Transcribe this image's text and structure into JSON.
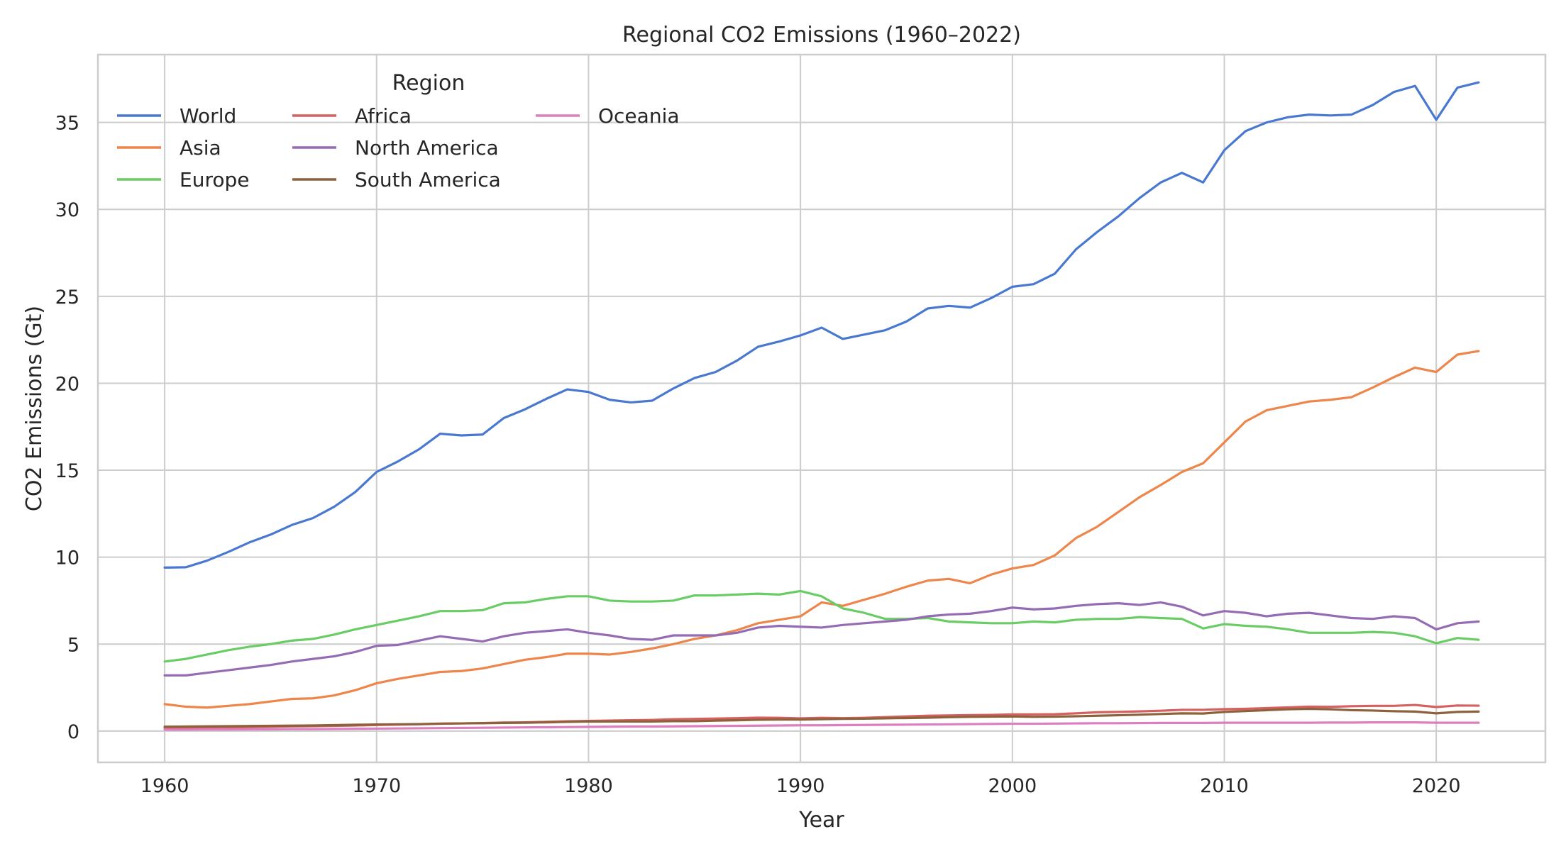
{
  "chart_data": {
    "type": "line",
    "title": "Regional CO2 Emissions (1960–2022)",
    "xlabel": "Year",
    "ylabel": "CO2 Emissions (Gt)",
    "xlim": [
      1956.85,
      2025.15
    ],
    "ylim": [
      -1.8,
      38.9
    ],
    "x_ticks": [
      1960,
      1970,
      1980,
      1990,
      2000,
      2010,
      2020
    ],
    "y_ticks": [
      0,
      5,
      10,
      15,
      20,
      25,
      30,
      35
    ],
    "grid": true,
    "legend": {
      "title": "Region",
      "placement": "top-left",
      "columns": 3
    },
    "x": [
      1960,
      1961,
      1962,
      1963,
      1964,
      1965,
      1966,
      1967,
      1968,
      1969,
      1970,
      1971,
      1972,
      1973,
      1974,
      1975,
      1976,
      1977,
      1978,
      1979,
      1980,
      1981,
      1982,
      1983,
      1984,
      1985,
      1986,
      1987,
      1988,
      1989,
      1990,
      1991,
      1992,
      1993,
      1994,
      1995,
      1996,
      1997,
      1998,
      1999,
      2000,
      2001,
      2002,
      2003,
      2004,
      2005,
      2006,
      2007,
      2008,
      2009,
      2010,
      2011,
      2012,
      2013,
      2014,
      2015,
      2016,
      2017,
      2018,
      2019,
      2020,
      2021,
      2022
    ],
    "series": [
      {
        "name": "World",
        "color": "#4878d0",
        "values": [
          9.4,
          9.42,
          9.8,
          10.3,
          10.85,
          11.3,
          11.85,
          12.25,
          12.9,
          13.75,
          14.9,
          15.5,
          16.2,
          17.1,
          17.0,
          17.05,
          18.0,
          18.5,
          19.1,
          19.65,
          19.5,
          19.05,
          18.9,
          19.0,
          19.7,
          20.3,
          20.65,
          21.3,
          22.1,
          22.4,
          22.75,
          23.2,
          22.55,
          22.8,
          23.05,
          23.55,
          24.3,
          24.45,
          24.35,
          24.9,
          25.55,
          25.7,
          26.3,
          27.7,
          28.7,
          29.6,
          30.65,
          31.55,
          32.1,
          31.55,
          33.4,
          34.5,
          35.0,
          35.3,
          35.45,
          35.4,
          35.45,
          36.0,
          36.75,
          37.1,
          35.15,
          37.0,
          37.3
        ]
      },
      {
        "name": "Asia",
        "color": "#ee854a",
        "values": [
          1.55,
          1.4,
          1.35,
          1.45,
          1.55,
          1.7,
          1.85,
          1.88,
          2.05,
          2.35,
          2.75,
          3.0,
          3.2,
          3.4,
          3.45,
          3.6,
          3.85,
          4.1,
          4.25,
          4.45,
          4.45,
          4.4,
          4.55,
          4.75,
          5.0,
          5.3,
          5.5,
          5.8,
          6.2,
          6.4,
          6.6,
          7.4,
          7.2,
          7.55,
          7.9,
          8.3,
          8.65,
          8.75,
          8.5,
          9.0,
          9.35,
          9.55,
          10.1,
          11.1,
          11.75,
          12.6,
          13.45,
          14.15,
          14.9,
          15.4,
          16.6,
          17.8,
          18.45,
          18.7,
          18.95,
          19.05,
          19.2,
          19.75,
          20.35,
          20.9,
          20.65,
          21.65,
          21.85
        ]
      },
      {
        "name": "Europe",
        "color": "#6acc64",
        "values": [
          4.0,
          4.15,
          4.4,
          4.65,
          4.85,
          5.0,
          5.2,
          5.3,
          5.55,
          5.85,
          6.1,
          6.35,
          6.6,
          6.9,
          6.9,
          6.95,
          7.35,
          7.4,
          7.6,
          7.75,
          7.75,
          7.5,
          7.45,
          7.45,
          7.5,
          7.8,
          7.8,
          7.85,
          7.9,
          7.85,
          8.05,
          7.75,
          7.05,
          6.8,
          6.45,
          6.45,
          6.5,
          6.3,
          6.25,
          6.2,
          6.2,
          6.3,
          6.25,
          6.4,
          6.45,
          6.45,
          6.55,
          6.5,
          6.45,
          5.9,
          6.15,
          6.05,
          6.0,
          5.85,
          5.65,
          5.65,
          5.65,
          5.7,
          5.65,
          5.45,
          5.05,
          5.35,
          5.25
        ]
      },
      {
        "name": "Africa",
        "color": "#d65f5f",
        "values": [
          0.18,
          0.19,
          0.2,
          0.21,
          0.23,
          0.25,
          0.27,
          0.28,
          0.3,
          0.32,
          0.35,
          0.37,
          0.39,
          0.42,
          0.44,
          0.46,
          0.49,
          0.5,
          0.53,
          0.56,
          0.58,
          0.6,
          0.62,
          0.64,
          0.68,
          0.7,
          0.72,
          0.74,
          0.77,
          0.76,
          0.73,
          0.76,
          0.74,
          0.76,
          0.8,
          0.84,
          0.88,
          0.9,
          0.92,
          0.93,
          0.96,
          0.96,
          0.97,
          1.02,
          1.08,
          1.1,
          1.13,
          1.17,
          1.22,
          1.22,
          1.26,
          1.28,
          1.32,
          1.36,
          1.4,
          1.39,
          1.43,
          1.45,
          1.45,
          1.5,
          1.38,
          1.47,
          1.46
        ]
      },
      {
        "name": "North America",
        "color": "#956cb4",
        "values": [
          3.2,
          3.2,
          3.35,
          3.5,
          3.65,
          3.8,
          4.0,
          4.15,
          4.3,
          4.55,
          4.9,
          4.95,
          5.2,
          5.45,
          5.3,
          5.15,
          5.45,
          5.65,
          5.75,
          5.85,
          5.65,
          5.5,
          5.3,
          5.25,
          5.5,
          5.5,
          5.5,
          5.65,
          5.95,
          6.05,
          6.0,
          5.95,
          6.1,
          6.2,
          6.3,
          6.4,
          6.6,
          6.7,
          6.75,
          6.9,
          7.1,
          7.0,
          7.05,
          7.2,
          7.3,
          7.35,
          7.25,
          7.4,
          7.15,
          6.65,
          6.9,
          6.8,
          6.6,
          6.75,
          6.8,
          6.65,
          6.5,
          6.45,
          6.6,
          6.5,
          5.85,
          6.2,
          6.3
        ]
      },
      {
        "name": "South America",
        "color": "#8c613c",
        "values": [
          0.25,
          0.26,
          0.27,
          0.28,
          0.29,
          0.3,
          0.31,
          0.32,
          0.34,
          0.36,
          0.38,
          0.39,
          0.4,
          0.43,
          0.44,
          0.45,
          0.47,
          0.48,
          0.5,
          0.53,
          0.55,
          0.55,
          0.55,
          0.55,
          0.57,
          0.57,
          0.6,
          0.62,
          0.65,
          0.66,
          0.66,
          0.68,
          0.7,
          0.71,
          0.73,
          0.75,
          0.77,
          0.8,
          0.82,
          0.83,
          0.84,
          0.82,
          0.83,
          0.85,
          0.88,
          0.91,
          0.94,
          0.98,
          1.02,
          1.01,
          1.1,
          1.15,
          1.2,
          1.25,
          1.28,
          1.25,
          1.2,
          1.18,
          1.14,
          1.12,
          1.02,
          1.1,
          1.12
        ]
      },
      {
        "name": "Oceania",
        "color": "#dc7ec0",
        "values": [
          0.08,
          0.08,
          0.09,
          0.09,
          0.1,
          0.1,
          0.11,
          0.11,
          0.12,
          0.13,
          0.14,
          0.15,
          0.16,
          0.17,
          0.18,
          0.19,
          0.2,
          0.21,
          0.22,
          0.23,
          0.24,
          0.25,
          0.26,
          0.26,
          0.27,
          0.28,
          0.29,
          0.3,
          0.31,
          0.32,
          0.33,
          0.33,
          0.34,
          0.35,
          0.36,
          0.37,
          0.38,
          0.39,
          0.4,
          0.41,
          0.42,
          0.42,
          0.43,
          0.44,
          0.45,
          0.45,
          0.46,
          0.47,
          0.47,
          0.47,
          0.48,
          0.48,
          0.48,
          0.48,
          0.48,
          0.49,
          0.49,
          0.5,
          0.5,
          0.5,
          0.48,
          0.48,
          0.48
        ]
      }
    ]
  }
}
